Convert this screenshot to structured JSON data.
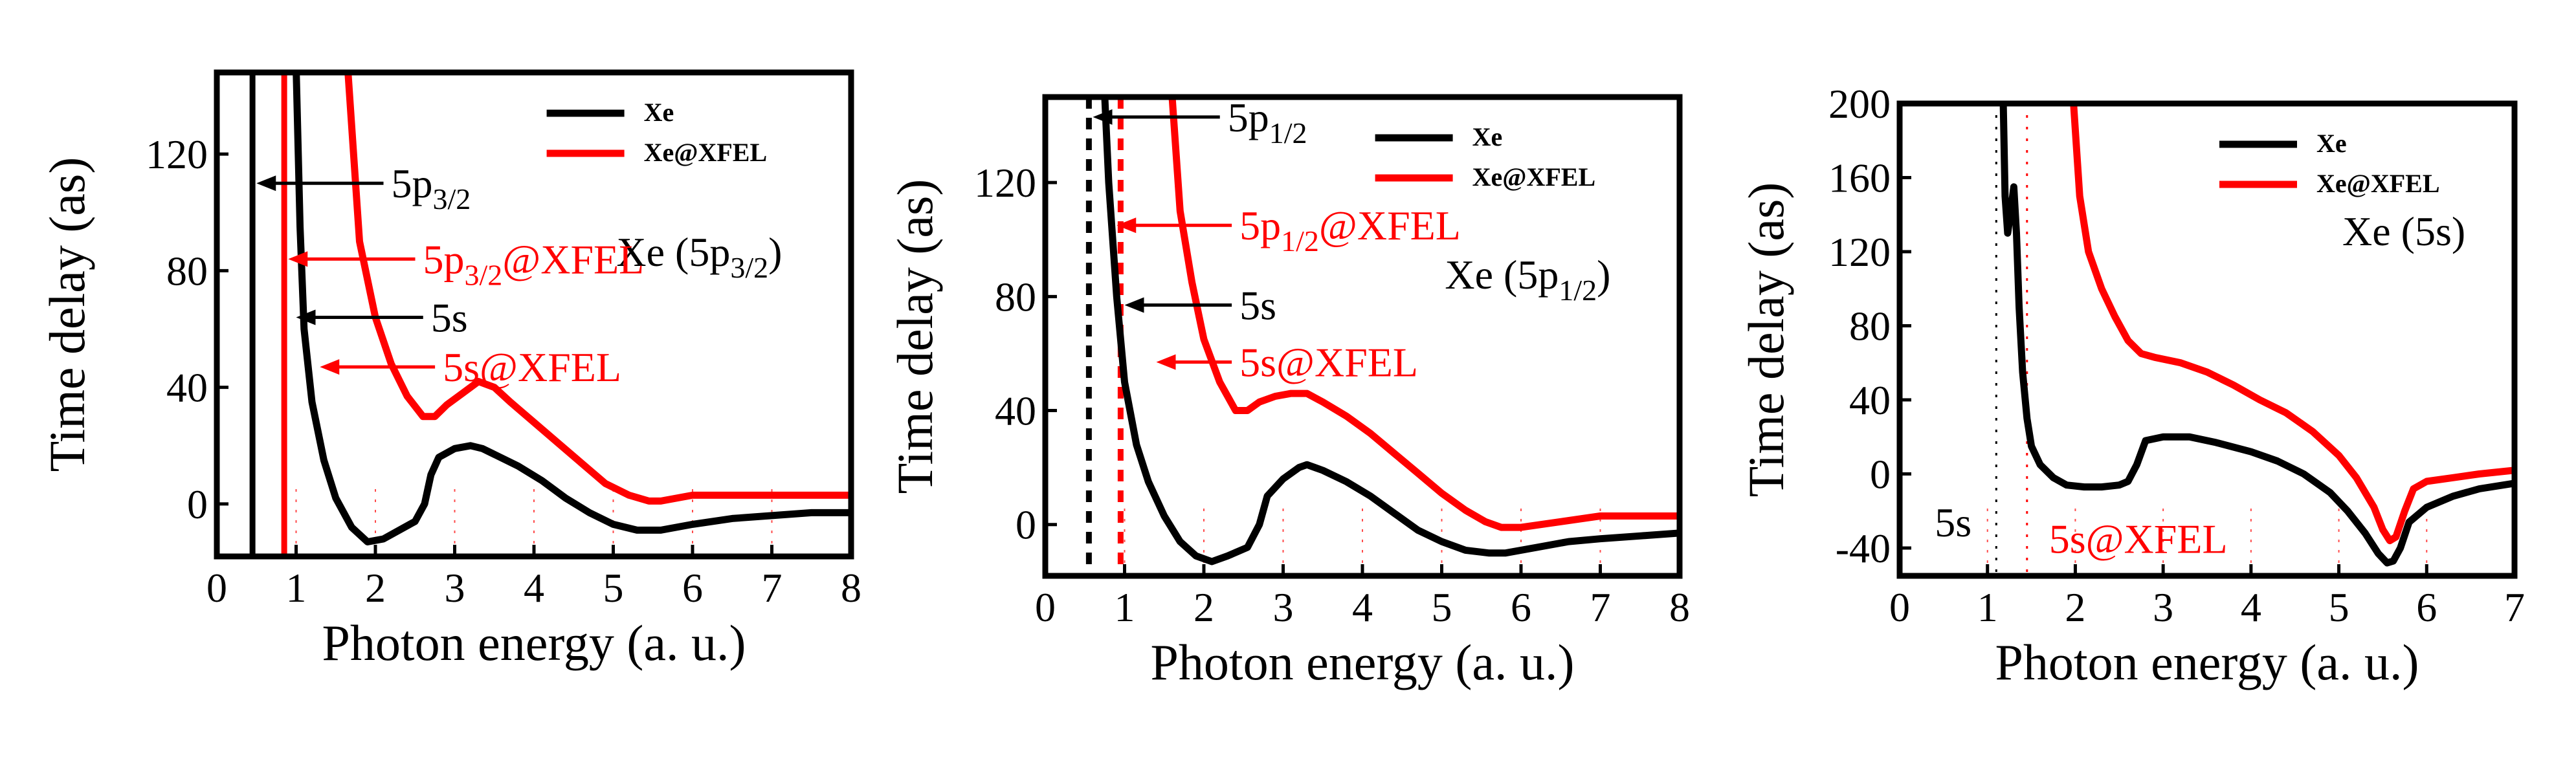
{
  "colors": {
    "xe": "#000000",
    "xfel": "#ff0000",
    "text_red": "#ff0000",
    "grid_red": "#ff0000"
  },
  "chart_data": [
    {
      "type": "line",
      "xlabel": "Photon energy (a. u.)",
      "ylabel": "Time delay (as)",
      "xlim": [
        0,
        8
      ],
      "ylim": [
        -18,
        148
      ],
      "xticks": [
        0,
        1,
        2,
        3,
        4,
        5,
        6,
        7,
        8
      ],
      "xtick_labels": [
        "0",
        "1",
        "2",
        "3",
        "4",
        "5",
        "6",
        "7",
        "8"
      ],
      "yticks": [
        0,
        40,
        80,
        120
      ],
      "ytick_labels": [
        "0",
        "40",
        "80",
        "120"
      ],
      "legend": {
        "position": "top-right",
        "entries": [
          "Xe",
          "Xe@XFEL"
        ]
      },
      "panel_label": {
        "text": "Xe (5p",
        "sub": "3/2",
        "tail": ")"
      },
      "vlines": [
        {
          "x": 0.45,
          "color": "black",
          "style": "solid"
        },
        {
          "x": 0.85,
          "color": "red",
          "style": "solid"
        }
      ],
      "annotations": [
        {
          "text": "5p",
          "sub": "3/2",
          "tail": "",
          "color": "black",
          "arrow_to": [
            0.5,
            110
          ],
          "text_at": [
            2.2,
            110
          ]
        },
        {
          "text": "5p",
          "sub": "3/2",
          "tail": "@XFEL",
          "color": "red",
          "arrow_to": [
            0.9,
            84
          ],
          "text_at": [
            2.6,
            84
          ]
        },
        {
          "text": "5s",
          "sub": "",
          "tail": "",
          "color": "black",
          "arrow_to": [
            1.0,
            64
          ],
          "text_at": [
            2.7,
            64
          ]
        },
        {
          "text": "5s@XFEL",
          "sub": "",
          "tail": "",
          "color": "red",
          "arrow_to": [
            1.3,
            47
          ],
          "text_at": [
            2.85,
            47
          ]
        }
      ],
      "series": [
        {
          "name": "Xe",
          "color": "black",
          "x": [
            1.0,
            1.05,
            1.1,
            1.2,
            1.35,
            1.5,
            1.7,
            1.9,
            2.1,
            2.3,
            2.5,
            2.62,
            2.7,
            2.8,
            3.0,
            3.2,
            3.35,
            3.5,
            3.8,
            4.1,
            4.4,
            4.7,
            5.0,
            5.3,
            5.6,
            6.0,
            6.5,
            7.0,
            7.5,
            8.0
          ],
          "y": [
            150,
            95,
            60,
            35,
            15,
            2,
            -8,
            -13,
            -12,
            -9,
            -6,
            0,
            10,
            16,
            19,
            20,
            19,
            17,
            13,
            8,
            2,
            -3,
            -7,
            -9,
            -9,
            -7,
            -5,
            -4,
            -3,
            -3
          ]
        },
        {
          "name": "Xe@XFEL",
          "color": "red",
          "x": [
            1.65,
            1.8,
            2.0,
            2.2,
            2.4,
            2.6,
            2.75,
            2.9,
            3.1,
            3.3,
            3.5,
            3.7,
            4.0,
            4.3,
            4.6,
            4.9,
            5.2,
            5.45,
            5.6,
            5.8,
            6.0,
            6.5,
            7.0,
            7.5,
            8.0
          ],
          "y": [
            150,
            90,
            64,
            48,
            37,
            30,
            30,
            34,
            38,
            42,
            40,
            35,
            28,
            21,
            14,
            7,
            3,
            1,
            1,
            2,
            3,
            3,
            3,
            3,
            3
          ]
        }
      ]
    },
    {
      "type": "line",
      "xlabel": "Photon energy (a. u.)",
      "ylabel": "Time delay (as)",
      "xlim": [
        0,
        8
      ],
      "ylim": [
        -18,
        150
      ],
      "xticks": [
        0,
        1,
        2,
        3,
        4,
        5,
        6,
        7,
        8
      ],
      "xtick_labels": [
        "0",
        "1",
        "2",
        "3",
        "4",
        "5",
        "6",
        "7",
        "8"
      ],
      "yticks": [
        0,
        40,
        80,
        120
      ],
      "ytick_labels": [
        "0",
        "40",
        "80",
        "120"
      ],
      "legend": {
        "position": "top-right",
        "entries": [
          "Xe",
          "Xe@XFEL"
        ]
      },
      "panel_label": {
        "text": "Xe (5p",
        "sub": "1/2",
        "tail": ")"
      },
      "vlines": [
        {
          "x": 0.55,
          "color": "black",
          "style": "dashed"
        },
        {
          "x": 0.95,
          "color": "red",
          "style": "dashed"
        }
      ],
      "annotations": [
        {
          "text": "5p",
          "sub": "1/2",
          "tail": "",
          "color": "black",
          "arrow_to": [
            0.6,
            143
          ],
          "text_at": [
            2.3,
            143
          ]
        },
        {
          "text": "5p",
          "sub": "1/2",
          "tail": "@XFEL",
          "color": "red",
          "arrow_to": [
            0.9,
            105
          ],
          "text_at": [
            2.45,
            105
          ]
        },
        {
          "text": "5s",
          "sub": "",
          "tail": "",
          "color": "black",
          "arrow_to": [
            1.0,
            77
          ],
          "text_at": [
            2.45,
            77
          ]
        },
        {
          "text": "5s@XFEL",
          "sub": "",
          "tail": "",
          "color": "red",
          "arrow_to": [
            1.4,
            57
          ],
          "text_at": [
            2.45,
            57
          ]
        }
      ],
      "series": [
        {
          "name": "Xe",
          "color": "black",
          "x": [
            0.75,
            0.8,
            0.9,
            1.0,
            1.15,
            1.3,
            1.5,
            1.7,
            1.9,
            2.1,
            2.3,
            2.55,
            2.7,
            2.8,
            3.0,
            3.2,
            3.3,
            3.5,
            3.8,
            4.1,
            4.4,
            4.7,
            5.0,
            5.3,
            5.6,
            5.8,
            6.2,
            6.6,
            7.0,
            7.5,
            8.0
          ],
          "y": [
            150,
            120,
            80,
            50,
            28,
            15,
            3,
            -6,
            -11,
            -13,
            -11,
            -8,
            0,
            10,
            16,
            20,
            21,
            19,
            15,
            10,
            4,
            -2,
            -6,
            -9,
            -10,
            -10,
            -8,
            -6,
            -5,
            -4,
            -3
          ]
        },
        {
          "name": "Xe@XFEL",
          "color": "red",
          "x": [
            1.6,
            1.7,
            1.85,
            2.0,
            2.2,
            2.4,
            2.55,
            2.7,
            2.9,
            3.1,
            3.3,
            3.5,
            3.8,
            4.1,
            4.4,
            4.7,
            5.0,
            5.3,
            5.55,
            5.75,
            6.0,
            6.5,
            7.0,
            7.5,
            8.0
          ],
          "y": [
            150,
            110,
            85,
            65,
            50,
            40,
            40,
            43,
            45,
            46,
            46,
            43,
            38,
            32,
            25,
            18,
            11,
            5,
            1,
            -1,
            -1,
            1,
            3,
            3,
            3
          ]
        }
      ]
    },
    {
      "type": "line",
      "xlabel": "Photon energy (a. u.)",
      "ylabel": "Time delay (as)",
      "xlim": [
        0,
        7
      ],
      "ylim": [
        -55,
        200
      ],
      "xticks": [
        0,
        1,
        2,
        3,
        4,
        5,
        6,
        7
      ],
      "xtick_labels": [
        "0",
        "1",
        "2",
        "3",
        "4",
        "5",
        "6",
        "7"
      ],
      "yticks": [
        -40,
        0,
        40,
        80,
        120,
        160,
        200
      ],
      "ytick_labels": [
        "-40",
        "0",
        "40",
        "80",
        "120",
        "160",
        "200"
      ],
      "legend": {
        "position": "top-right",
        "entries": [
          "Xe",
          "Xe@XFEL"
        ]
      },
      "panel_label": {
        "text": "Xe (5s)",
        "sub": "",
        "tail": ""
      },
      "vlines": [
        {
          "x": 1.1,
          "color": "black",
          "style": "dotted"
        },
        {
          "x": 1.45,
          "color": "red",
          "style": "dotted"
        }
      ],
      "annotations": [
        {
          "text": "5s",
          "sub": "",
          "tail": "",
          "color": "black",
          "arrow_to": null,
          "text_at": [
            0.4,
            -26
          ]
        },
        {
          "text": "5s@XFEL",
          "sub": "",
          "tail": "",
          "color": "red",
          "arrow_to": null,
          "text_at": [
            1.7,
            -35
          ]
        }
      ],
      "series": [
        {
          "name": "Xe",
          "color": "black",
          "x": [
            1.18,
            1.2,
            1.23,
            1.26,
            1.3,
            1.33,
            1.36,
            1.4,
            1.45,
            1.5,
            1.6,
            1.75,
            1.9,
            2.1,
            2.3,
            2.5,
            2.6,
            2.7,
            2.8,
            3.0,
            3.3,
            3.6,
            4.0,
            4.3,
            4.6,
            4.9,
            5.1,
            5.3,
            5.45,
            5.55,
            5.62,
            5.7,
            5.8,
            6.0,
            6.3,
            6.6,
            7.0
          ],
          "y": [
            200,
            150,
            130,
            140,
            155,
            130,
            90,
            55,
            30,
            15,
            5,
            -2,
            -6,
            -7,
            -7,
            -6,
            -4,
            5,
            18,
            20,
            20,
            17,
            12,
            7,
            0,
            -10,
            -20,
            -32,
            -43,
            -48,
            -47,
            -40,
            -26,
            -18,
            -12,
            -8,
            -5
          ]
        },
        {
          "name": "Xe@XFEL",
          "color": "red",
          "x": [
            1.98,
            2.05,
            2.15,
            2.3,
            2.45,
            2.6,
            2.75,
            2.9,
            3.2,
            3.5,
            3.8,
            4.1,
            4.4,
            4.7,
            5.0,
            5.2,
            5.4,
            5.5,
            5.58,
            5.65,
            5.75,
            5.85,
            6.0,
            6.3,
            6.6,
            7.0
          ],
          "y": [
            200,
            150,
            120,
            100,
            85,
            72,
            65,
            63,
            60,
            55,
            48,
            40,
            33,
            23,
            10,
            -2,
            -18,
            -30,
            -36,
            -34,
            -20,
            -8,
            -4,
            -2,
            0,
            2
          ]
        }
      ]
    }
  ]
}
